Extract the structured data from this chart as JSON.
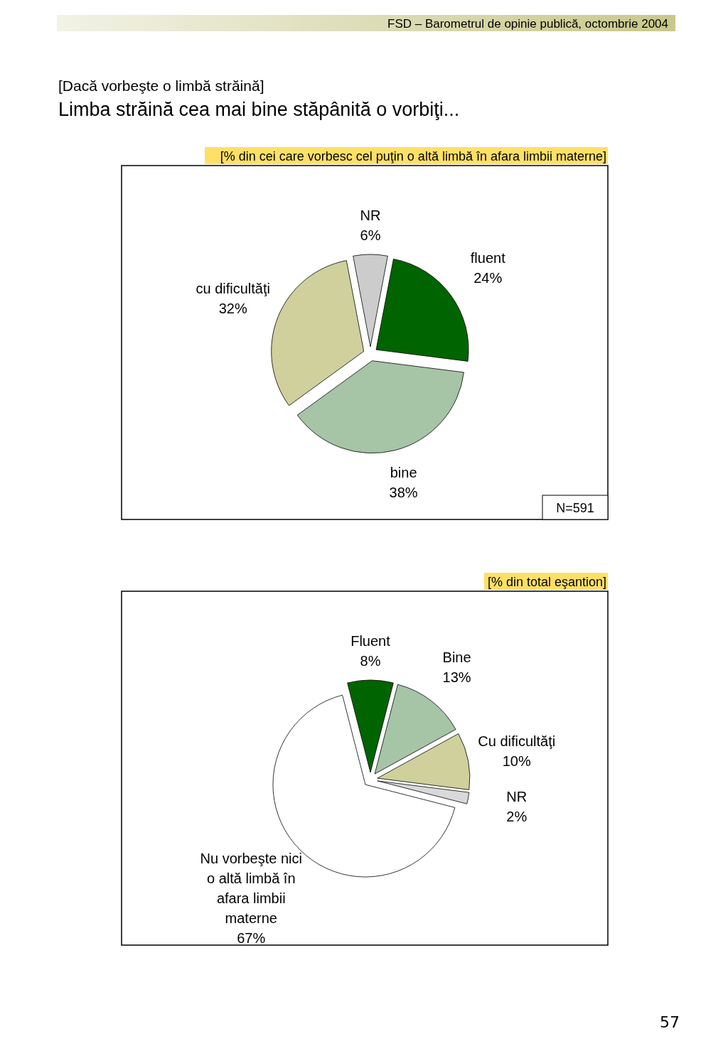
{
  "chart_data": [
    {
      "type": "pie",
      "subtitle": "[Dacă vorbeşte o limbă străină]",
      "title": "Limba străină cea mai bine stăpânită o vorbiţi...",
      "categories": [
        "NR",
        "fluent",
        "bine",
        "cu dificultăţi"
      ],
      "values": [
        6,
        24,
        38,
        32
      ],
      "colors": [
        "#cccccc",
        "#006400",
        "#a6c4a6",
        "#d0d09c"
      ],
      "value_labels": [
        "6%",
        "24%",
        "38%",
        "32%"
      ],
      "annotations": [
        "FSD  –  Barometrul de opinie publică, octombrie 2004",
        "[% din cei care vorbesc cel puţin o altă limbă în afara limbii materne]",
        "N=591"
      ]
    },
    {
      "type": "pie",
      "categories": [
        "Fluent",
        "Bine",
        "Cu dificultăţi",
        "NR",
        "Nu vorbeşte nici o altă limbă în afara limbii materne"
      ],
      "values": [
        8,
        13,
        10,
        2,
        67
      ],
      "colors": [
        "#006400",
        "#a6c4a6",
        "#d0d09c",
        "#d9d9d9",
        "#ffffff"
      ],
      "value_labels": [
        "8%",
        "13%",
        "10%",
        "2%",
        "67%"
      ],
      "annotations": [
        "[% din total eşantion]",
        "57"
      ]
    }
  ]
}
